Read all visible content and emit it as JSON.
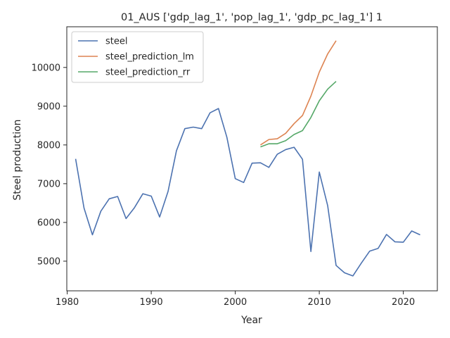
{
  "chart_data": {
    "type": "line",
    "title": "01_AUS ['gdp_lag_1', 'pop_lag_1', 'gdp_pc_lag_1'] 1",
    "xlabel": "Year",
    "ylabel": "Steel production",
    "xlim": [
      1979.95,
      2024.05
    ],
    "ylim": [
      4235,
      11050
    ],
    "xticks": [
      1980,
      1990,
      2000,
      2010,
      2020
    ],
    "yticks": [
      5000,
      6000,
      7000,
      8000,
      9000,
      10000
    ],
    "grid": false,
    "legend_position": "upper-left",
    "series": [
      {
        "name": "steel",
        "color": "#4c72b0",
        "x": [
          1981,
          1982,
          1983,
          1984,
          1985,
          1986,
          1987,
          1988,
          1989,
          1990,
          1991,
          1992,
          1993,
          1994,
          1995,
          1996,
          1997,
          1998,
          1999,
          2000,
          2001,
          2002,
          2003,
          2004,
          2005,
          2006,
          2007,
          2008,
          2009,
          2010,
          2011,
          2012,
          2013,
          2014,
          2015,
          2016,
          2017,
          2018,
          2019,
          2020,
          2021,
          2022
        ],
        "y": [
          7640,
          6370,
          5680,
          6290,
          6610,
          6670,
          6100,
          6380,
          6740,
          6680,
          6140,
          6800,
          7850,
          8420,
          8460,
          8420,
          8830,
          8940,
          8200,
          7130,
          7030,
          7530,
          7540,
          7420,
          7760,
          7880,
          7940,
          7630,
          5250,
          7300,
          6430,
          4890,
          4700,
          4620,
          4950,
          5260,
          5330,
          5690,
          5500,
          5490,
          5780,
          5680
        ]
      },
      {
        "name": "steel_prediction_lm",
        "color": "#dd8452",
        "x": [
          2003,
          2004,
          2005,
          2006,
          2007,
          2008,
          2009,
          2010,
          2011,
          2012
        ],
        "y": [
          8000,
          8140,
          8160,
          8300,
          8550,
          8760,
          9260,
          9880,
          10350,
          10690
        ]
      },
      {
        "name": "steel_prediction_rr",
        "color": "#55a868",
        "x": [
          2003,
          2004,
          2005,
          2006,
          2007,
          2008,
          2009,
          2010,
          2011,
          2012
        ],
        "y": [
          7950,
          8030,
          8030,
          8110,
          8270,
          8370,
          8710,
          9140,
          9440,
          9640
        ]
      }
    ]
  }
}
